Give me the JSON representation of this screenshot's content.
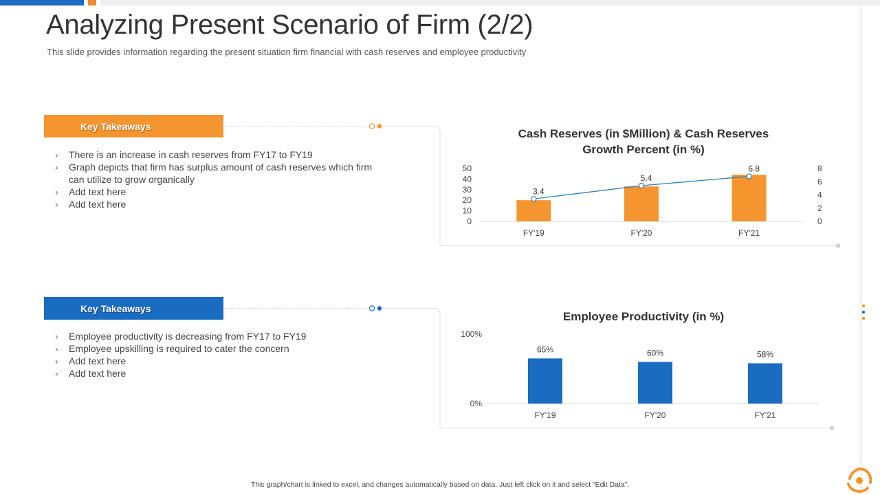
{
  "title": "Analyzing Present Scenario of Firm (2/2)",
  "subtitle": "This slide provides information regarding the present situation firm financial with cash reserves and employee productivity",
  "colors": {
    "orange": "#F5952F",
    "blue": "#1A6CC0",
    "line": "#2C7FB8"
  },
  "sections": [
    {
      "tab_label": "Key Takeaways",
      "bullets": [
        "There is an increase in cash reserves from FY17 to FY19",
        "Graph depicts that firm has surplus amount of cash reserves which firm can utilize to grow organically",
        "Add text here",
        "Add text here"
      ]
    },
    {
      "tab_label": "Key Takeaways",
      "bullets": [
        "Employee productivity is decreasing from FY17 to FY19",
        "Employee upskilling is required to cater the concern",
        "Add text here",
        "Add text here"
      ]
    }
  ],
  "chart_data": [
    {
      "type": "bar",
      "title": "Cash Reserves (in $Million) & Cash Reserves Growth Percent (in %)",
      "title_lines": [
        "Cash Reserves (in $Million) & Cash Reserves",
        "Growth Percent (in %)"
      ],
      "categories": [
        "FY'19",
        "FY'20",
        "FY'21"
      ],
      "series": [
        {
          "name": "Cash Reserves (in $Million)",
          "type": "bar",
          "axis": "left",
          "values": [
            20,
            33,
            44
          ]
        },
        {
          "name": "Cash Reserves Growth Percent (in %)",
          "type": "line",
          "axis": "right",
          "values": [
            3.4,
            5.4,
            6.8
          ]
        }
      ],
      "data_labels": [
        "3.4",
        "5.4",
        "6.8"
      ],
      "ylim": [
        0,
        50
      ],
      "yticks": [
        "0",
        "10",
        "20",
        "30",
        "40",
        "50"
      ],
      "y2lim": [
        0,
        8
      ],
      "y2ticks": [
        "0",
        "2",
        "4",
        "6",
        "8"
      ],
      "xlabel": "",
      "ylabel": ""
    },
    {
      "type": "bar",
      "title": "Employee Productivity (in %)",
      "categories": [
        "FY'19",
        "FY'20",
        "FY'21"
      ],
      "values": [
        65,
        60,
        58
      ],
      "data_labels": [
        "65%",
        "60%",
        "58%"
      ],
      "ylim": [
        0,
        100
      ],
      "yticks": [
        "0%",
        "100%"
      ],
      "xlabel": "",
      "ylabel": ""
    }
  ],
  "footer": "This graph/chart is linked to excel, and changes automatically  based on data. Just left click on it and select “Edit Data”."
}
